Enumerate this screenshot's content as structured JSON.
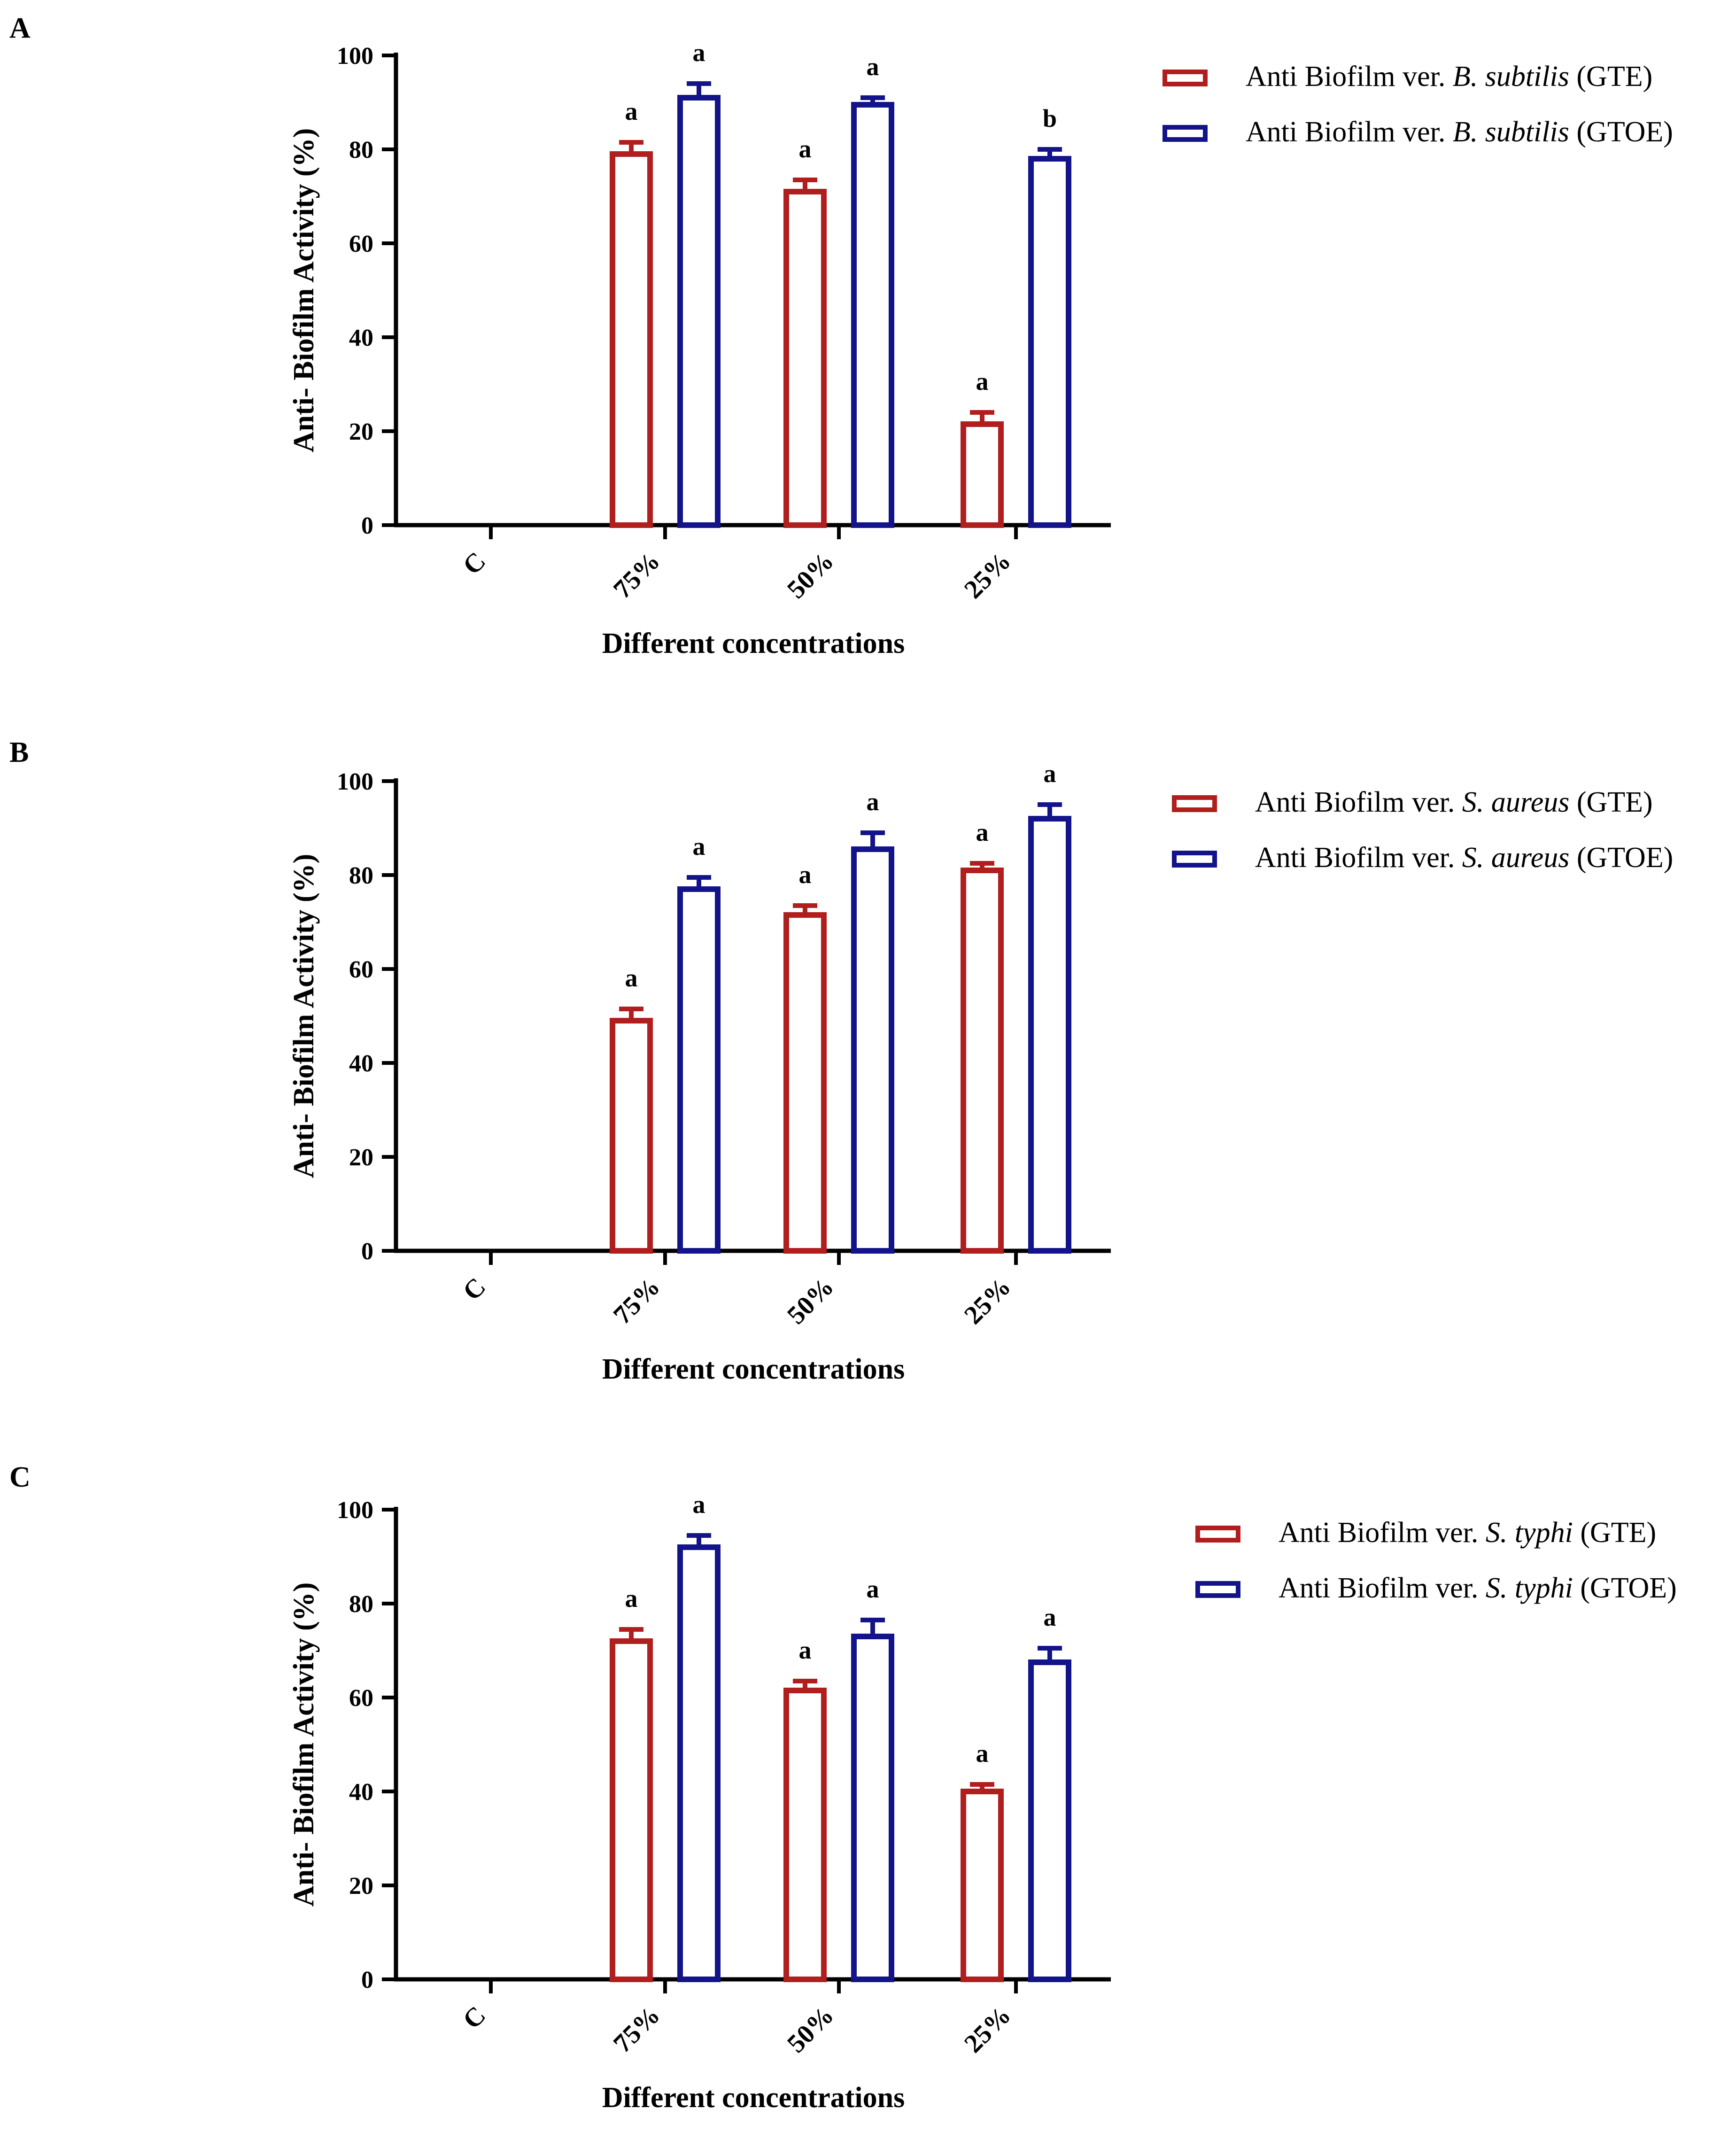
{
  "figure": {
    "panels": [
      "A",
      "B",
      "C"
    ]
  },
  "colors": {
    "gte": "#b01e1e",
    "gtoe": "#14148a",
    "axis": "#000000"
  },
  "chart_data": [
    {
      "panel": "A",
      "type": "bar",
      "categories": [
        "C",
        "75%",
        "50%",
        "25%"
      ],
      "xlabel": "Different concentrations",
      "ylabel": "Anti- Biofilm Activity (%)",
      "ylim": [
        0,
        100
      ],
      "yticks": [
        "0",
        "20",
        "40",
        "60",
        "80",
        "100"
      ],
      "series": [
        {
          "key": "gte",
          "legend": {
            "prefix": "Anti Biofilm ver. ",
            "organism": "B. subtilis",
            "suffix": " (GTE)"
          },
          "values": [
            0,
            79,
            71,
            21.5
          ],
          "errors": [
            0,
            2.5,
            2.5,
            2.5
          ],
          "labels": [
            "",
            "a",
            "a",
            "a"
          ]
        },
        {
          "key": "gtoe",
          "legend": {
            "prefix": "Anti Biofilm ver. ",
            "organism": "B. subtilis",
            "suffix": " (GTOE)"
          },
          "values": [
            0,
            91,
            89.5,
            78
          ],
          "errors": [
            0,
            3,
            1.5,
            2
          ],
          "labels": [
            "",
            "a",
            "a",
            "b"
          ]
        }
      ]
    },
    {
      "panel": "B",
      "type": "bar",
      "categories": [
        "C",
        "75%",
        "50%",
        "25%"
      ],
      "xlabel": "Different concentrations",
      "ylabel": "Anti- Biofilm Activity (%)",
      "ylim": [
        0,
        100
      ],
      "yticks": [
        "0",
        "20",
        "40",
        "60",
        "80",
        "100"
      ],
      "series": [
        {
          "key": "gte",
          "legend": {
            "prefix": "Anti Biofilm ver. ",
            "organism": "S. aureus",
            "suffix": " (GTE)"
          },
          "values": [
            0,
            49,
            71.5,
            81
          ],
          "errors": [
            0,
            2.5,
            2,
            1.5
          ],
          "labels": [
            "",
            "a",
            "a",
            "a"
          ]
        },
        {
          "key": "gtoe",
          "legend": {
            "prefix": "Anti Biofilm ver. ",
            "organism": "S. aureus",
            "suffix": " (GTOE)"
          },
          "values": [
            0,
            77,
            85.5,
            92
          ],
          "errors": [
            0,
            2.5,
            3.5,
            3
          ],
          "labels": [
            "",
            "a",
            "a",
            "a"
          ]
        }
      ]
    },
    {
      "panel": "C",
      "type": "bar",
      "categories": [
        "C",
        "75%",
        "50%",
        "25%"
      ],
      "xlabel": "Different concentrations",
      "ylabel": "Anti- Biofilm Activity (%)",
      "ylim": [
        0,
        100
      ],
      "yticks": [
        "0",
        "20",
        "40",
        "60",
        "80",
        "100"
      ],
      "series": [
        {
          "key": "gte",
          "legend": {
            "prefix": "Anti Biofilm ver. ",
            "organism": "S. typhi",
            "suffix": " (GTE)"
          },
          "values": [
            0,
            72,
            61.5,
            40
          ],
          "errors": [
            0,
            2.5,
            2,
            1.5
          ],
          "labels": [
            "",
            "a",
            "a",
            "a"
          ]
        },
        {
          "key": "gtoe",
          "legend": {
            "prefix": "Anti Biofilm ver. ",
            "organism": "S. typhi",
            "suffix": " (GTOE)"
          },
          "values": [
            0,
            92,
            73,
            67.5
          ],
          "errors": [
            0,
            2.5,
            3.5,
            3
          ],
          "labels": [
            "",
            "a",
            "a",
            "a"
          ]
        }
      ]
    }
  ]
}
